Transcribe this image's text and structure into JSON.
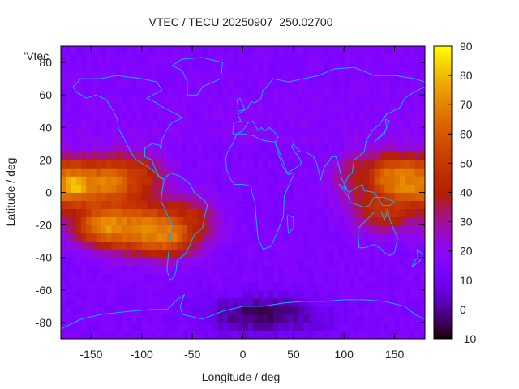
{
  "chart_data": {
    "type": "heatmap",
    "title": "VTEC / TECU 20250907_250.02700",
    "xlabel": "Longitude / deg",
    "ylabel": "Latitude / deg",
    "legend_label": "'Vtec_",
    "xlim": [
      -180,
      180
    ],
    "ylim": [
      -90,
      90
    ],
    "x_ticks": [
      -150,
      -100,
      -50,
      0,
      50,
      100,
      150
    ],
    "y_ticks": [
      -80,
      -60,
      -40,
      -20,
      0,
      20,
      40,
      60,
      80
    ],
    "colorbar": {
      "range": [
        -10,
        90
      ],
      "ticks": [
        -10,
        0,
        10,
        20,
        30,
        40,
        50,
        60,
        70,
        80,
        90
      ]
    },
    "grid_resolution_deg": 5,
    "field_features": {
      "background_tecu": 15,
      "equatorial_anomaly": [
        {
          "lon": -165,
          "lat": 5,
          "tecu": 82
        },
        {
          "lon": -130,
          "lat": 7,
          "tecu": 70
        },
        {
          "lon": -110,
          "lat": 10,
          "tecu": 50
        },
        {
          "lon": -135,
          "lat": -20,
          "tecu": 75
        },
        {
          "lon": -100,
          "lat": -22,
          "tecu": 72
        },
        {
          "lon": -75,
          "lat": -25,
          "tecu": 70
        },
        {
          "lon": -60,
          "lat": -15,
          "tecu": 45
        },
        {
          "lon": 150,
          "lat": 10,
          "tecu": 65
        },
        {
          "lon": 165,
          "lat": 5,
          "tecu": 70
        },
        {
          "lon": 140,
          "lat": -10,
          "tecu": 50
        },
        {
          "lon": 120,
          "lat": 10,
          "tecu": 40
        }
      ],
      "south_polar_minimum": {
        "lon": 20,
        "lat": -75,
        "tecu": -5
      },
      "north_region_tecu": 18
    }
  }
}
